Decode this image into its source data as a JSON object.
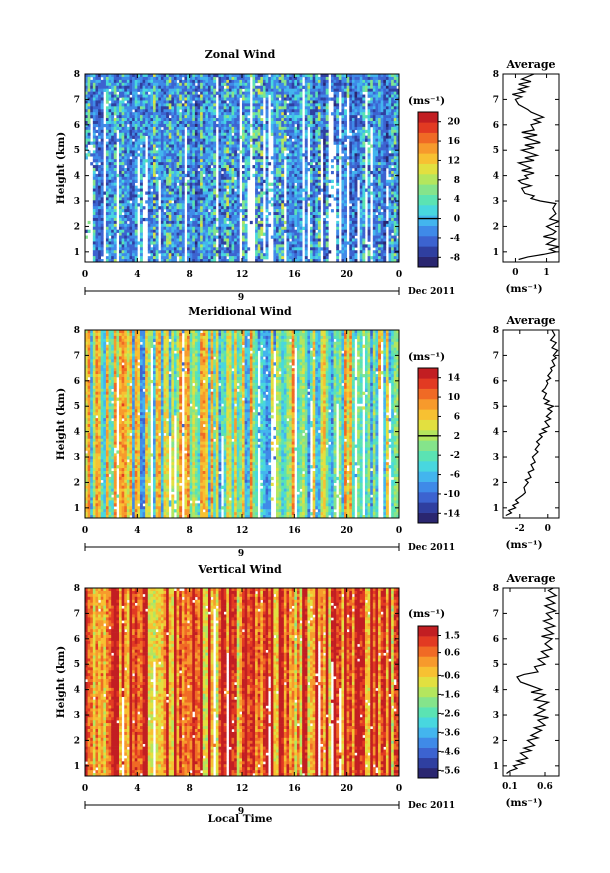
{
  "chart_data": [
    {
      "type": "heatmap",
      "title": "Zonal Wind",
      "xlabel": "",
      "ylabel": "Height (km)",
      "x_ticks": [
        "0",
        "4",
        "8",
        "12",
        "16",
        "20",
        "0"
      ],
      "date_day": "9",
      "date_label": "Dec 2011",
      "y_ticks": [
        "1",
        "2",
        "3",
        "4",
        "5",
        "6",
        "7",
        "8"
      ],
      "colorbar_unit": "(ms⁻¹)",
      "colorbar_ticks": [
        "20",
        "16",
        "12",
        "8",
        "4",
        "0",
        "-4",
        "-8"
      ],
      "colorbar_range": [
        -10,
        22
      ],
      "grid": false,
      "average": {
        "title": "Average",
        "xlabel": "(ms⁻¹)",
        "x_ticks": [
          "0",
          "1"
        ],
        "xlim": [
          -0.4,
          1.4
        ],
        "profile": [
          [
            0.1,
            0.7
          ],
          [
            0.4,
            0.8
          ],
          [
            0.9,
            0.9
          ],
          [
            1.3,
            1.0
          ],
          [
            1.1,
            1.1
          ],
          [
            1.4,
            1.2
          ],
          [
            1.0,
            1.3
          ],
          [
            1.3,
            1.5
          ],
          [
            0.9,
            1.6
          ],
          [
            1.2,
            1.7
          ],
          [
            1.3,
            1.8
          ],
          [
            1.0,
            2.0
          ],
          [
            1.2,
            2.1
          ],
          [
            1.4,
            2.2
          ],
          [
            1.1,
            2.3
          ],
          [
            1.3,
            2.5
          ],
          [
            1.2,
            2.7
          ],
          [
            1.3,
            2.9
          ],
          [
            0.8,
            3.0
          ],
          [
            0.5,
            3.1
          ],
          [
            0.6,
            3.2
          ],
          [
            0.3,
            3.3
          ],
          [
            0.2,
            3.5
          ],
          [
            0.5,
            3.6
          ],
          [
            0.2,
            3.7
          ],
          [
            0.1,
            3.8
          ],
          [
            0.4,
            3.9
          ],
          [
            0.3,
            4.0
          ],
          [
            0.6,
            4.1
          ],
          [
            0.2,
            4.2
          ],
          [
            0.5,
            4.3
          ],
          [
            0.1,
            4.5
          ],
          [
            0.6,
            4.6
          ],
          [
            0.3,
            4.7
          ],
          [
            0.7,
            4.8
          ],
          [
            0.2,
            5.0
          ],
          [
            0.6,
            5.1
          ],
          [
            0.3,
            5.2
          ],
          [
            0.8,
            5.3
          ],
          [
            0.3,
            5.5
          ],
          [
            0.7,
            5.6
          ],
          [
            0.2,
            5.7
          ],
          [
            0.6,
            5.8
          ],
          [
            0.5,
            6.0
          ],
          [
            0.8,
            6.1
          ],
          [
            0.6,
            6.2
          ],
          [
            0.9,
            6.3
          ],
          [
            0.5,
            6.5
          ],
          [
            0.4,
            6.6
          ],
          [
            0.1,
            6.8
          ],
          [
            0.0,
            7.0
          ],
          [
            0.2,
            7.1
          ],
          [
            -0.1,
            7.2
          ],
          [
            0.3,
            7.3
          ],
          [
            0.1,
            7.4
          ],
          [
            0.4,
            7.5
          ],
          [
            0.1,
            7.6
          ],
          [
            0.5,
            7.7
          ],
          [
            0.2,
            7.8
          ],
          [
            0.6,
            8.0
          ]
        ]
      }
    },
    {
      "type": "heatmap",
      "title": "Meridional Wind",
      "xlabel": "",
      "ylabel": "Height (km)",
      "x_ticks": [
        "0",
        "4",
        "8",
        "12",
        "16",
        "20",
        "0"
      ],
      "date_day": "9",
      "date_label": "Dec 2011",
      "y_ticks": [
        "1",
        "2",
        "3",
        "4",
        "5",
        "6",
        "7",
        "8"
      ],
      "colorbar_unit": "(ms⁻¹)",
      "colorbar_ticks": [
        "14",
        "10",
        "6",
        "2",
        "-2",
        "-6",
        "-10",
        "-14"
      ],
      "colorbar_range": [
        -16,
        16
      ],
      "grid": false,
      "average": {
        "title": "Average",
        "xlabel": "(ms⁻¹)",
        "x_ticks": [
          "-2",
          "0"
        ],
        "xlim": [
          -3.2,
          0.8
        ],
        "profile": [
          [
            -3.0,
            0.7
          ],
          [
            -2.6,
            0.8
          ],
          [
            -2.8,
            0.9
          ],
          [
            -2.3,
            1.0
          ],
          [
            -2.5,
            1.1
          ],
          [
            -2.1,
            1.2
          ],
          [
            -2.3,
            1.3
          ],
          [
            -1.8,
            1.5
          ],
          [
            -1.6,
            1.6
          ],
          [
            -1.7,
            1.8
          ],
          [
            -1.4,
            2.0
          ],
          [
            -1.6,
            2.1
          ],
          [
            -1.2,
            2.2
          ],
          [
            -1.4,
            2.4
          ],
          [
            -1.0,
            2.5
          ],
          [
            -1.2,
            2.7
          ],
          [
            -0.9,
            2.8
          ],
          [
            -1.1,
            3.0
          ],
          [
            -0.7,
            3.2
          ],
          [
            -0.9,
            3.3
          ],
          [
            -0.6,
            3.5
          ],
          [
            -0.8,
            3.6
          ],
          [
            -0.4,
            3.8
          ],
          [
            -0.6,
            3.9
          ],
          [
            -0.1,
            4.0
          ],
          [
            -0.4,
            4.1
          ],
          [
            0.1,
            4.2
          ],
          [
            -0.2,
            4.4
          ],
          [
            0.2,
            4.5
          ],
          [
            -0.1,
            4.6
          ],
          [
            0.3,
            4.8
          ],
          [
            0.0,
            4.9
          ],
          [
            0.4,
            5.0
          ],
          [
            -0.2,
            5.1
          ],
          [
            0.1,
            5.2
          ],
          [
            -0.3,
            5.3
          ],
          [
            -0.1,
            5.5
          ],
          [
            -0.4,
            5.6
          ],
          [
            -0.2,
            5.7
          ],
          [
            0.0,
            5.9
          ],
          [
            -0.1,
            6.0
          ],
          [
            0.2,
            6.1
          ],
          [
            0.0,
            6.2
          ],
          [
            0.3,
            6.4
          ],
          [
            0.2,
            6.5
          ],
          [
            0.5,
            6.6
          ],
          [
            0.3,
            6.8
          ],
          [
            0.6,
            6.9
          ],
          [
            0.4,
            7.0
          ],
          [
            0.7,
            7.2
          ],
          [
            0.3,
            7.3
          ],
          [
            0.6,
            7.5
          ],
          [
            0.2,
            7.6
          ],
          [
            0.5,
            7.8
          ],
          [
            0.3,
            8.0
          ]
        ]
      }
    },
    {
      "type": "heatmap",
      "title": "Vertical Wind",
      "xlabel": "Local Time",
      "ylabel": "Height (km)",
      "x_ticks": [
        "0",
        "4",
        "8",
        "12",
        "16",
        "20",
        "0"
      ],
      "date_day": "9",
      "date_label": "Dec 2011",
      "y_ticks": [
        "1",
        "2",
        "3",
        "4",
        "5",
        "6",
        "7",
        "8"
      ],
      "colorbar_unit": "(ms⁻¹)",
      "colorbar_ticks": [
        "1.5",
        "0.6",
        "-0.6",
        "-1.6",
        "-2.6",
        "-3.6",
        "-4.6",
        "-5.6"
      ],
      "colorbar_range": [
        -6.0,
        2.0
      ],
      "grid": false,
      "average": {
        "title": "Average",
        "xlabel": "(ms⁻¹)",
        "x_ticks": [
          "0.1",
          "0.6"
        ],
        "xlim": [
          0.0,
          0.8
        ],
        "profile": [
          [
            0.05,
            0.7
          ],
          [
            0.1,
            0.8
          ],
          [
            0.2,
            0.9
          ],
          [
            0.15,
            1.0
          ],
          [
            0.3,
            1.1
          ],
          [
            0.2,
            1.2
          ],
          [
            0.35,
            1.3
          ],
          [
            0.25,
            1.5
          ],
          [
            0.4,
            1.6
          ],
          [
            0.3,
            1.7
          ],
          [
            0.45,
            1.8
          ],
          [
            0.35,
            2.0
          ],
          [
            0.5,
            2.1
          ],
          [
            0.4,
            2.2
          ],
          [
            0.55,
            2.4
          ],
          [
            0.45,
            2.5
          ],
          [
            0.6,
            2.6
          ],
          [
            0.5,
            2.8
          ],
          [
            0.65,
            2.9
          ],
          [
            0.45,
            3.0
          ],
          [
            0.6,
            3.2
          ],
          [
            0.5,
            3.3
          ],
          [
            0.65,
            3.5
          ],
          [
            0.45,
            3.6
          ],
          [
            0.6,
            3.8
          ],
          [
            0.4,
            3.9
          ],
          [
            0.55,
            4.0
          ],
          [
            0.35,
            4.2
          ],
          [
            0.25,
            4.3
          ],
          [
            0.2,
            4.5
          ],
          [
            0.3,
            4.6
          ],
          [
            0.5,
            4.7
          ],
          [
            0.45,
            4.9
          ],
          [
            0.6,
            5.0
          ],
          [
            0.5,
            5.2
          ],
          [
            0.65,
            5.3
          ],
          [
            0.55,
            5.5
          ],
          [
            0.7,
            5.6
          ],
          [
            0.6,
            5.8
          ],
          [
            0.7,
            6.0
          ],
          [
            0.55,
            6.1
          ],
          [
            0.72,
            6.2
          ],
          [
            0.6,
            6.4
          ],
          [
            0.74,
            6.5
          ],
          [
            0.58,
            6.7
          ],
          [
            0.7,
            6.8
          ],
          [
            0.62,
            7.0
          ],
          [
            0.75,
            7.1
          ],
          [
            0.6,
            7.3
          ],
          [
            0.74,
            7.4
          ],
          [
            0.62,
            7.6
          ],
          [
            0.76,
            7.7
          ],
          [
            0.65,
            7.9
          ],
          [
            0.72,
            8.0
          ]
        ]
      }
    }
  ]
}
